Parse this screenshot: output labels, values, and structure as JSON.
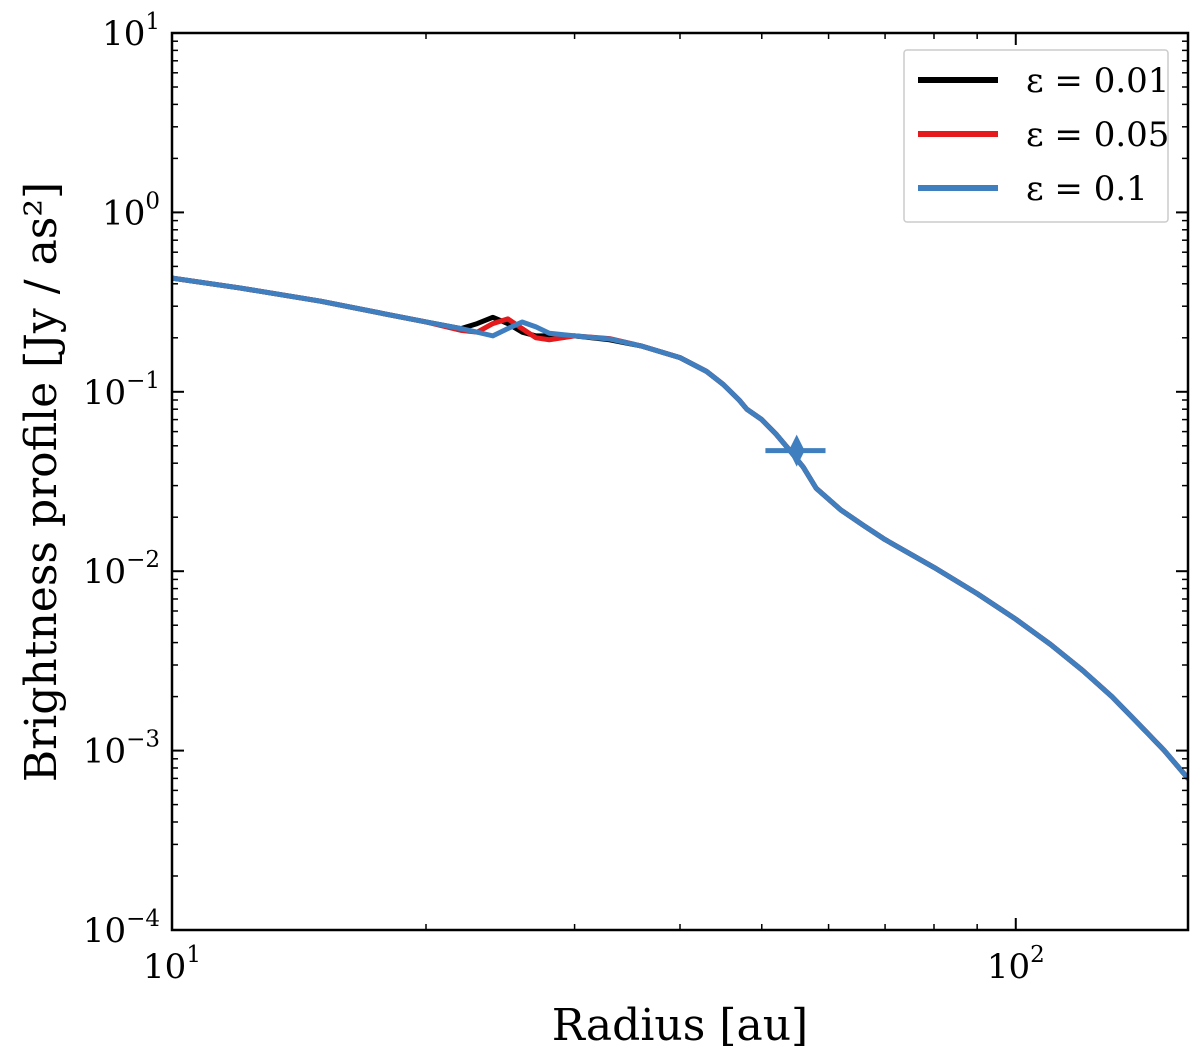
{
  "chart_data": {
    "type": "line",
    "title": "",
    "xlabel": "Radius [au]",
    "ylabel": "Brightness profile [Jy / as²]",
    "xscale": "log",
    "yscale": "log",
    "xlim": [
      10,
      160
    ],
    "ylim": [
      0.0001,
      10
    ],
    "grid": false,
    "legend_position": "top-right",
    "x_ticks": [
      {
        "value": 10,
        "base": "10",
        "exp": "1"
      },
      {
        "value": 100,
        "base": "10",
        "exp": "2"
      }
    ],
    "y_ticks": [
      {
        "value": 10,
        "base": "10",
        "exp": "1"
      },
      {
        "value": 1,
        "base": "10",
        "exp": "0"
      },
      {
        "value": 0.1,
        "base": "10",
        "exp": "−1"
      },
      {
        "value": 0.01,
        "base": "10",
        "exp": "−2"
      },
      {
        "value": 0.001,
        "base": "10",
        "exp": "−3"
      },
      {
        "value": 0.0001,
        "base": "10",
        "exp": "−4"
      }
    ],
    "series": [
      {
        "name": "ε = 0.01",
        "color": "#000000",
        "x": [
          10,
          12,
          15,
          18,
          20,
          22,
          23,
          24,
          25,
          26,
          27,
          28,
          30,
          33,
          36,
          40,
          43,
          45,
          47,
          48,
          50,
          52,
          54,
          56,
          58,
          62,
          66,
          70,
          80,
          90,
          100,
          110,
          120,
          130,
          140,
          150,
          160
        ],
        "y": [
          0.43,
          0.38,
          0.32,
          0.27,
          0.245,
          0.225,
          0.24,
          0.26,
          0.24,
          0.215,
          0.205,
          0.205,
          0.205,
          0.195,
          0.18,
          0.155,
          0.13,
          0.11,
          0.09,
          0.08,
          0.07,
          0.058,
          0.047,
          0.038,
          0.029,
          0.022,
          0.018,
          0.015,
          0.0105,
          0.0075,
          0.0054,
          0.0039,
          0.0028,
          0.002,
          0.0014,
          0.001,
          0.0007
        ]
      },
      {
        "name": "ε = 0.05",
        "color": "#e41a1c",
        "x": [
          10,
          12,
          15,
          18,
          20,
          22,
          23,
          24,
          25,
          26,
          27,
          28,
          30,
          33,
          36,
          40,
          43,
          45,
          47,
          48,
          50,
          52,
          54,
          56,
          58,
          62,
          66,
          70,
          80,
          90,
          100,
          110,
          120,
          130,
          140,
          150,
          160
        ],
        "y": [
          0.43,
          0.38,
          0.32,
          0.27,
          0.245,
          0.22,
          0.215,
          0.24,
          0.255,
          0.225,
          0.2,
          0.195,
          0.205,
          0.198,
          0.18,
          0.155,
          0.13,
          0.11,
          0.09,
          0.08,
          0.07,
          0.058,
          0.047,
          0.038,
          0.029,
          0.022,
          0.018,
          0.015,
          0.0105,
          0.0075,
          0.0054,
          0.0039,
          0.0028,
          0.002,
          0.0014,
          0.001,
          0.0007
        ]
      },
      {
        "name": "ε = 0.1",
        "color": "#3f7fbf",
        "x": [
          10,
          12,
          15,
          18,
          20,
          22,
          23,
          24,
          25,
          26,
          27,
          28,
          30,
          33,
          36,
          40,
          43,
          45,
          47,
          48,
          50,
          52,
          54,
          56,
          58,
          62,
          66,
          70,
          80,
          90,
          100,
          110,
          120,
          130,
          140,
          150,
          160
        ],
        "y": [
          0.43,
          0.38,
          0.32,
          0.27,
          0.245,
          0.225,
          0.215,
          0.205,
          0.225,
          0.245,
          0.23,
          0.212,
          0.205,
          0.197,
          0.18,
          0.155,
          0.13,
          0.11,
          0.09,
          0.08,
          0.07,
          0.058,
          0.047,
          0.038,
          0.029,
          0.022,
          0.018,
          0.015,
          0.0105,
          0.0075,
          0.0054,
          0.0039,
          0.0028,
          0.002,
          0.0014,
          0.001,
          0.0007
        ]
      }
    ],
    "marker": {
      "name": "ε = 0.1 marker",
      "color": "#3f7fbf",
      "x": 55,
      "y": 0.047,
      "xerr": [
        50.5,
        59.5
      ]
    }
  }
}
